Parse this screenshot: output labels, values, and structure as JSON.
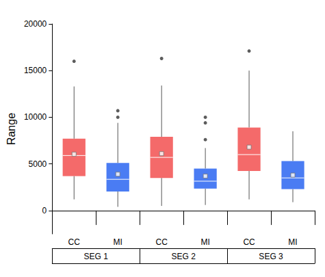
{
  "chart_data": {
    "type": "boxplot",
    "y_label": "Range",
    "categories": [
      "CC",
      "MI",
      "CC",
      "MI",
      "CC",
      "MI"
    ],
    "groups": [
      "SEG 1",
      "SEG 2",
      "SEG 3"
    ],
    "ylim": [
      -2500,
      20000
    ],
    "yticks": [
      0,
      5000,
      10000,
      15000,
      20000
    ],
    "grid": false,
    "boxes": [
      {
        "category": "CC",
        "group": "SEG 1",
        "color": "#F46A6A",
        "min": 1200,
        "q1": 3700,
        "median": 5900,
        "q3": 7700,
        "max": 13300,
        "mean": 6050,
        "outliers": [
          16000
        ]
      },
      {
        "category": "MI",
        "group": "SEG 1",
        "color": "#4A7CF3",
        "min": 400,
        "q1": 2050,
        "median": 3350,
        "q3": 5100,
        "max": 9400,
        "mean": 3900,
        "outliers": [
          10000,
          10700
        ]
      },
      {
        "category": "CC",
        "group": "SEG 2",
        "color": "#F46A6A",
        "min": 500,
        "q1": 3500,
        "median": 5700,
        "q3": 7900,
        "max": 13400,
        "mean": 6100,
        "outliers": [
          16300
        ]
      },
      {
        "category": "MI",
        "group": "SEG 2",
        "color": "#4A7CF3",
        "min": 600,
        "q1": 2350,
        "median": 3150,
        "q3": 4500,
        "max": 6700,
        "mean": 3700,
        "outliers": [
          7600,
          9400,
          10000
        ]
      },
      {
        "category": "CC",
        "group": "SEG 3",
        "color": "#F46A6A",
        "min": 1200,
        "q1": 4250,
        "median": 6000,
        "q3": 8900,
        "max": 15000,
        "mean": 6800,
        "outliers": [
          17100
        ]
      },
      {
        "category": "MI",
        "group": "SEG 3",
        "color": "#4A7CF3",
        "min": 900,
        "q1": 2300,
        "median": 3500,
        "q3": 5300,
        "max": 8500,
        "mean": 3800,
        "outliers": []
      }
    ]
  }
}
